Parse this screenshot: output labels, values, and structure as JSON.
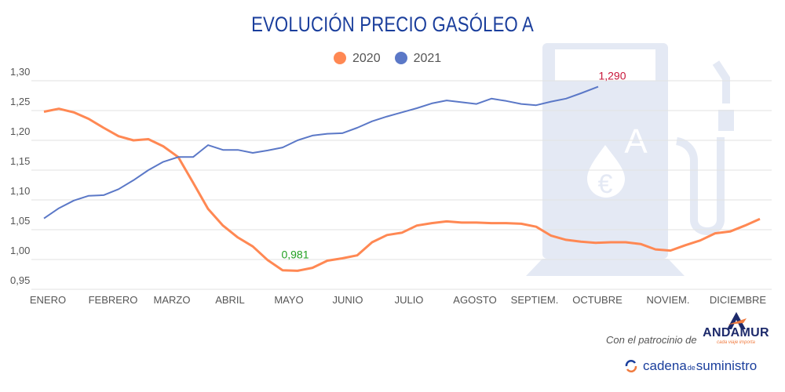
{
  "title": "EVOLUCIÓN PRECIO GASÓLEO A",
  "sponsor": {
    "text": "Con el patrocinio de",
    "logo_andamur": "ANDAMUR",
    "logo_andamur_tagline": "cada viaje importa",
    "logo_cadena_1": "cadena",
    "logo_cadena_2": "de",
    "logo_cadena_3": "suministro"
  },
  "colors": {
    "2020": "#ff8853",
    "2021": "#5b78c7",
    "min_label": "#22a022",
    "max_label": "#c8173a",
    "title": "#1a3e9c",
    "watermark": "#e4e9f4"
  },
  "chart_data": {
    "type": "line",
    "title": "EVOLUCIÓN PRECIO GASÓLEO A",
    "legend_position": "top",
    "grid": true,
    "ylim": [
      0.95,
      1.3
    ],
    "yticks": [
      "1,30",
      "1,25",
      "1,20",
      "1,15",
      "1,10",
      "1,05",
      "1,00",
      "0,95"
    ],
    "ytick_values": [
      1.3,
      1.25,
      1.2,
      1.15,
      1.1,
      1.05,
      1.0,
      0.95
    ],
    "month_labels": [
      "ENERO",
      "FEBRERO",
      "MARZO",
      "ABRIL",
      "MAYO",
      "JUNIO",
      "JULIO",
      "AGOSTO",
      "SEPTIEM.",
      "OCTUBRE",
      "NOVIEM.",
      "DICIEMBRE"
    ],
    "x_unit": "week",
    "series": [
      {
        "name": "2020",
        "values": [
          1.248,
          1.253,
          1.247,
          1.236,
          1.221,
          1.207,
          1.2,
          1.202,
          1.19,
          1.172,
          1.129,
          1.085,
          1.057,
          1.037,
          1.022,
          0.999,
          0.982,
          0.981,
          0.986,
          0.998,
          1.002,
          1.007,
          1.029,
          1.041,
          1.045,
          1.057,
          1.061,
          1.064,
          1.062,
          1.062,
          1.061,
          1.061,
          1.06,
          1.055,
          1.04,
          1.033,
          1.03,
          1.028,
          1.029,
          1.029,
          1.026,
          1.017,
          1.015,
          1.024,
          1.032,
          1.044,
          1.047,
          1.057,
          1.068
        ]
      },
      {
        "name": "2021",
        "values": [
          1.069,
          1.086,
          1.099,
          1.107,
          1.108,
          1.118,
          1.133,
          1.15,
          1.164,
          1.172,
          1.172,
          1.192,
          1.184,
          1.184,
          1.179,
          1.183,
          1.188,
          1.2,
          1.208,
          1.211,
          1.212,
          1.221,
          1.232,
          1.24,
          1.247,
          1.254,
          1.262,
          1.267,
          1.264,
          1.261,
          1.27,
          1.266,
          1.261,
          1.259,
          1.265,
          1.27,
          1.279,
          1.29
        ]
      }
    ],
    "annotations": [
      {
        "series": "2020",
        "index": 17,
        "text": "0,981"
      },
      {
        "series": "2021",
        "index": 37,
        "text": "1,290"
      }
    ]
  }
}
